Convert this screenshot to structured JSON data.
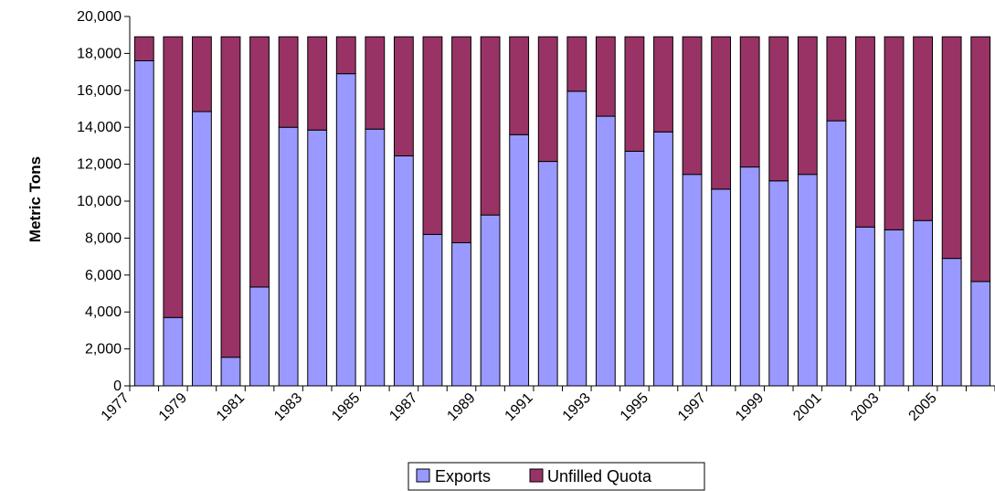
{
  "chart_data": {
    "type": "bar",
    "stacked": true,
    "title": "",
    "xlabel": "",
    "ylabel": "Metric Tons",
    "ylim": [
      0,
      20000
    ],
    "yticks": [
      0,
      2000,
      4000,
      6000,
      8000,
      10000,
      12000,
      14000,
      16000,
      18000,
      20000
    ],
    "ytick_labels": [
      "0",
      "2,000",
      "4,000",
      "6,000",
      "8,000",
      "10,000",
      "12,000",
      "14,000",
      "16,000",
      "18,000",
      "20,000"
    ],
    "xtick_labels": [
      "1977",
      "1979",
      "1981",
      "1983",
      "1985",
      "1987",
      "1989",
      "1991",
      "1993",
      "1995",
      "1997",
      "1999",
      "2001",
      "2003",
      "2005"
    ],
    "categories": [
      "1977",
      "1978",
      "1979",
      "1980",
      "1981",
      "1982",
      "1983",
      "1984",
      "1985",
      "1986",
      "1987",
      "1988",
      "1989",
      "1990",
      "1991",
      "1992",
      "1993",
      "1994",
      "1995",
      "1996",
      "1997",
      "1998",
      "1999",
      "2000",
      "2001",
      "2002",
      "2003",
      "2004",
      "2005",
      "2006"
    ],
    "series": [
      {
        "name": "Exports",
        "color": "#9999ff",
        "values": [
          17600,
          3700,
          14850,
          1550,
          5350,
          14000,
          13850,
          16900,
          13900,
          12450,
          8200,
          7750,
          9250,
          13600,
          12150,
          15950,
          14600,
          12700,
          13750,
          11450,
          10650,
          11850,
          11100,
          11450,
          14350,
          8600,
          8450,
          8950,
          6900,
          5650
        ]
      },
      {
        "name": "Unfilled Quota",
        "color": "#993366",
        "values": [
          1300,
          15200,
          4050,
          17350,
          13550,
          4900,
          5050,
          2000,
          5000,
          6450,
          10700,
          11150,
          9650,
          5300,
          6750,
          2950,
          4300,
          6200,
          5150,
          7450,
          8250,
          7050,
          7800,
          7450,
          4550,
          10300,
          10450,
          9950,
          12000,
          13250
        ]
      }
    ],
    "legend_position": "bottom",
    "grid": false
  }
}
